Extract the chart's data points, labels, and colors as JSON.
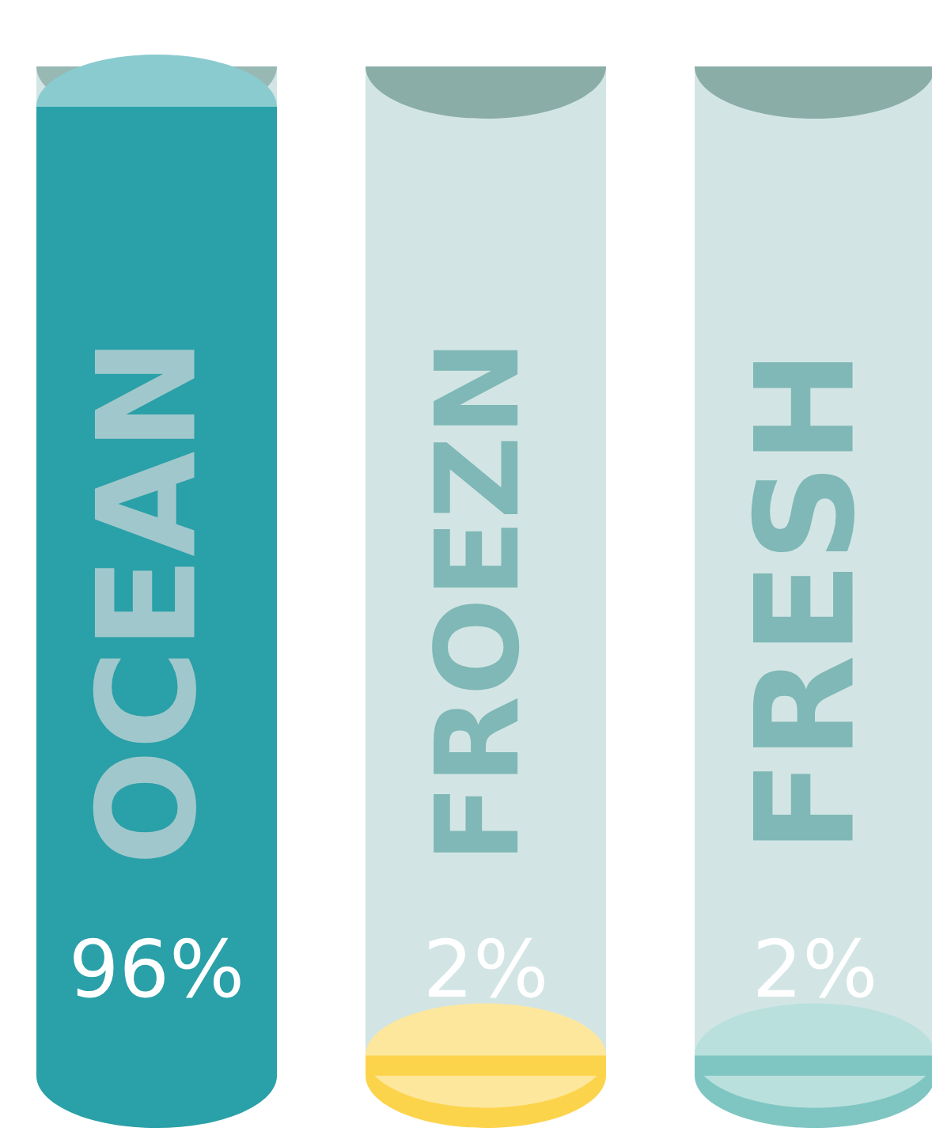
{
  "chart_data": {
    "type": "bar",
    "categories": [
      "OCEAN",
      "FROEZN",
      "FRESH"
    ],
    "values": [
      96,
      2,
      2
    ],
    "value_labels": [
      "96%",
      "2%",
      "2%"
    ],
    "colors": [
      "#2aa0a8",
      "#fcd44c",
      "#7fc6c2"
    ]
  }
}
